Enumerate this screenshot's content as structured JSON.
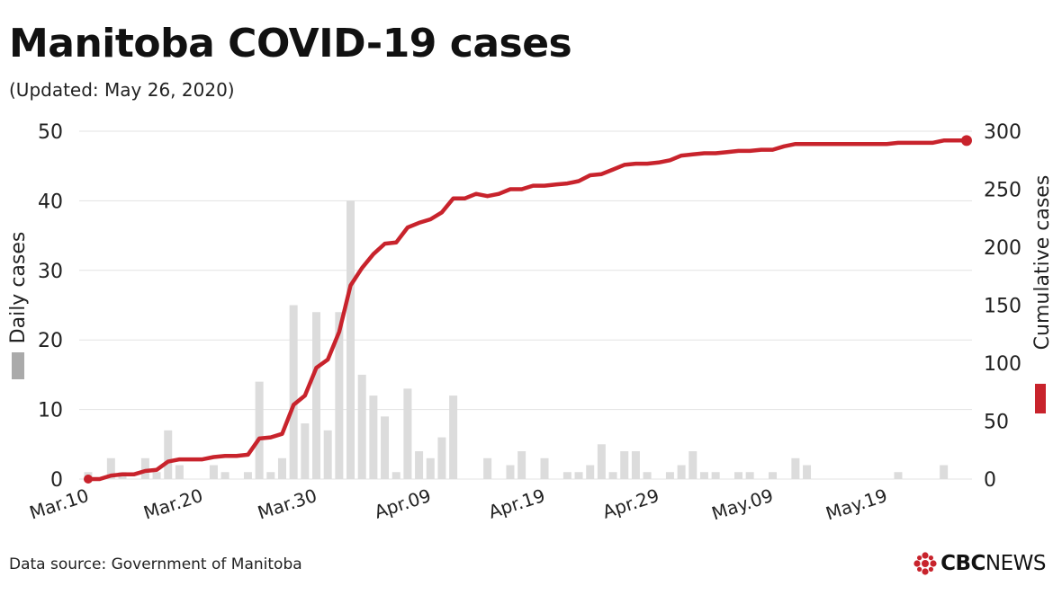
{
  "title": "Manitoba COVID-19 cases",
  "subtitle": "(Updated: May 26, 2020)",
  "footer": {
    "source": "Data source: Government of Manitoba",
    "logo_brand": "CBC",
    "logo_news": "NEWS"
  },
  "colors": {
    "bar": "#dcdcdc",
    "line": "#c8232c",
    "grid": "#e3e3e3",
    "text": "#222222",
    "legend_bar": "#aaaaaa"
  },
  "chart_data": {
    "type": "bar+line",
    "x_dates": [
      "Mar.10",
      "Mar.11",
      "Mar.12",
      "Mar.13",
      "Mar.14",
      "Mar.15",
      "Mar.16",
      "Mar.17",
      "Mar.18",
      "Mar.19",
      "Mar.20",
      "Mar.21",
      "Mar.22",
      "Mar.23",
      "Mar.24",
      "Mar.25",
      "Mar.26",
      "Mar.27",
      "Mar.28",
      "Mar.29",
      "Mar.30",
      "Mar.31",
      "Apr.01",
      "Apr.02",
      "Apr.03",
      "Apr.04",
      "Apr.05",
      "Apr.06",
      "Apr.07",
      "Apr.08",
      "Apr.09",
      "Apr.10",
      "Apr.11",
      "Apr.12",
      "Apr.13",
      "Apr.14",
      "Apr.15",
      "Apr.16",
      "Apr.17",
      "Apr.18",
      "Apr.19",
      "Apr.20",
      "Apr.21",
      "Apr.22",
      "Apr.23",
      "Apr.24",
      "Apr.25",
      "Apr.26",
      "Apr.27",
      "Apr.28",
      "Apr.29",
      "Apr.30",
      "May.01",
      "May.02",
      "May.03",
      "May.04",
      "May.05",
      "May.06",
      "May.07",
      "May.08",
      "May.09",
      "May.10",
      "May.11",
      "May.12",
      "May.13",
      "May.14",
      "May.15",
      "May.16",
      "May.17",
      "May.18",
      "May.19",
      "May.20",
      "May.21",
      "May.22",
      "May.23",
      "May.24",
      "May.25",
      "May.26"
    ],
    "x_tick_labels": [
      "Mar.10",
      "Mar.20",
      "Mar.30",
      "Apr.09",
      "Apr.19",
      "Apr.29",
      "May.09",
      "May.19"
    ],
    "series": [
      {
        "name": "Daily cases",
        "axis": "left",
        "kind": "bar",
        "values": [
          1,
          0,
          3,
          1,
          0,
          3,
          1,
          7,
          2,
          0,
          0,
          2,
          1,
          0,
          1,
          14,
          1,
          3,
          25,
          8,
          24,
          7,
          24,
          40,
          15,
          12,
          9,
          1,
          13,
          4,
          3,
          6,
          12,
          0,
          0,
          3,
          0,
          2,
          4,
          0,
          3,
          0,
          1,
          1,
          2,
          5,
          1,
          4,
          4,
          1,
          0,
          1,
          2,
          4,
          1,
          1,
          0,
          1,
          1,
          0,
          1,
          0,
          3,
          2,
          0,
          0,
          0,
          0,
          0,
          0,
          0,
          1,
          0,
          0,
          0,
          2,
          0,
          0
        ]
      },
      {
        "name": "Cumulative cases",
        "axis": "right",
        "kind": "line",
        "values": [
          0,
          0,
          3,
          4,
          4,
          7,
          8,
          15,
          17,
          17,
          17,
          19,
          20,
          20,
          21,
          35,
          36,
          39,
          64,
          72,
          96,
          103,
          127,
          167,
          182,
          194,
          203,
          204,
          217,
          221,
          224,
          230,
          242,
          242,
          246,
          244,
          246,
          250,
          250,
          253,
          253,
          254,
          255,
          257,
          262,
          263,
          267,
          271,
          272,
          272,
          273,
          275,
          279,
          280,
          281,
          281,
          282,
          283,
          283,
          284,
          284,
          287,
          289,
          289,
          289,
          289,
          289,
          289,
          289,
          289,
          289,
          290,
          290,
          290,
          290,
          292,
          292,
          292
        ]
      }
    ],
    "y_left": {
      "label": "Daily cases",
      "ticks": [
        0,
        10,
        20,
        30,
        40,
        50
      ],
      "lim": [
        0,
        50
      ]
    },
    "y_right": {
      "label": "Cumulative cases",
      "ticks": [
        0,
        50,
        100,
        150,
        200,
        250,
        300
      ],
      "lim": [
        0,
        300
      ]
    },
    "grid": true
  }
}
